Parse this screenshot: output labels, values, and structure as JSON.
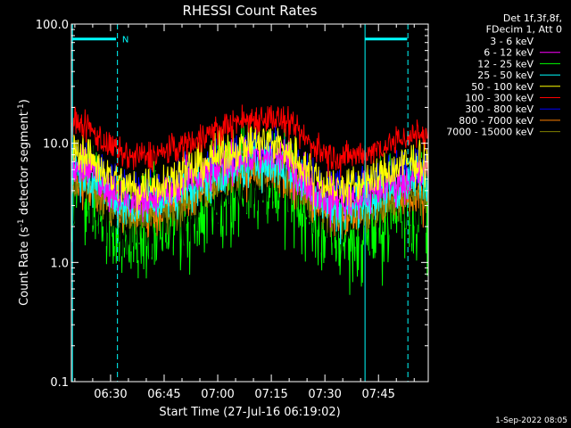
{
  "chart_data": {
    "type": "line",
    "title": "RHESSI Count Rates",
    "xlabel": "Start Time (27-Jul-16 06:19:02)",
    "ylabel_main": "Count Rate (s",
    "ylabel_sup": "-1",
    "ylabel_mid": " detector segment",
    "ylabel_sup2": "-1",
    "ylabel_end": ")",
    "ylim": [
      0.1,
      100
    ],
    "yscale": "log",
    "y_ticks": [
      {
        "value": 0.1,
        "label": "0.1"
      },
      {
        "value": 1,
        "label": "1.0"
      },
      {
        "value": 10,
        "label": "10.0"
      },
      {
        "value": 100,
        "label": "100.0"
      }
    ],
    "x_range_minutes": [
      0,
      99.9
    ],
    "x_ticks": [
      {
        "minutes": 10.97,
        "label": "06:30"
      },
      {
        "minutes": 25.97,
        "label": "06:45"
      },
      {
        "minutes": 40.97,
        "label": "07:00"
      },
      {
        "minutes": 55.97,
        "label": "07:15"
      },
      {
        "minutes": 70.97,
        "label": "07:30"
      },
      {
        "minutes": 85.97,
        "label": "07:45"
      }
    ],
    "legend_header": [
      "Det 1f,3f,8f,",
      "FDecim 1, Att 0"
    ],
    "legend_position": "right",
    "series": [
      {
        "name": "3 - 6 keV",
        "color": "#000000",
        "base": [
          5.0,
          2.4,
          5.6,
          2.4,
          4.0
        ],
        "noise": 0.45
      },
      {
        "name": "6 - 12 keV",
        "color": "#ff00ff",
        "base": [
          7.0,
          3.4,
          8.0,
          3.4,
          5.5
        ],
        "noise": 0.2
      },
      {
        "name": "12 - 25 keV",
        "color": "#00ff00",
        "base": [
          4.6,
          1.8,
          5.2,
          1.8,
          3.4
        ],
        "noise": 0.5
      },
      {
        "name": "25 - 50 keV",
        "color": "#00ffff",
        "base": [
          6.2,
          3.0,
          7.0,
          3.0,
          5.0
        ],
        "noise": 0.22
      },
      {
        "name": "50 - 100 keV",
        "color": "#ffff00",
        "base": [
          9.0,
          4.3,
          10.2,
          4.3,
          7.2
        ],
        "noise": 0.2
      },
      {
        "name": "100 - 300 keV",
        "color": "#ff0000",
        "base": [
          15.0,
          7.6,
          16.5,
          7.6,
          12.0
        ],
        "noise": 0.15
      },
      {
        "name": "300 - 800 keV",
        "color": "#0000ff",
        "base": [
          7.2,
          3.8,
          8.5,
          3.8,
          6.0
        ],
        "noise": 0.22
      },
      {
        "name": "800 - 7000 keV",
        "color": "#ff8000",
        "base": [
          5.2,
          2.6,
          6.3,
          2.6,
          3.9
        ],
        "noise": 0.2
      },
      {
        "name": "7000 - 15000 keV",
        "color": "#808000",
        "base": [
          5.0,
          2.5,
          6.0,
          2.5,
          3.7
        ],
        "noise": 0.2
      }
    ],
    "markers": {
      "color": "#00ffff",
      "solid_minutes": [
        0.3,
        82.2
      ],
      "dashed_minutes": [
        12.9,
        94.2
      ],
      "bars": [
        [
          0.3,
          12.5
        ],
        [
          82.2,
          94.0
        ]
      ],
      "bar_value": 75,
      "label": "N",
      "label_minutes": 14.2
    }
  },
  "footer": {
    "timestamp": "1-Sep-2022 08:05"
  }
}
